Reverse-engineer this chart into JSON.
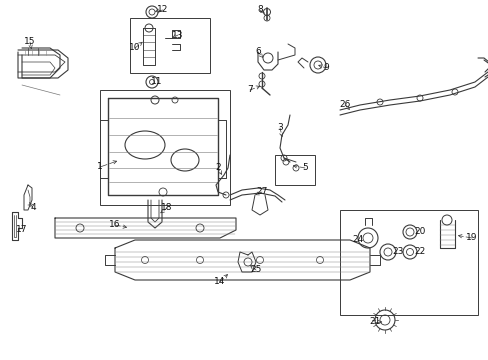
{
  "bg_color": "#ffffff",
  "lc": "#3a3a3a",
  "lw": 0.7,
  "num_fs": 6.5,
  "arrow_fs": 5.5
}
